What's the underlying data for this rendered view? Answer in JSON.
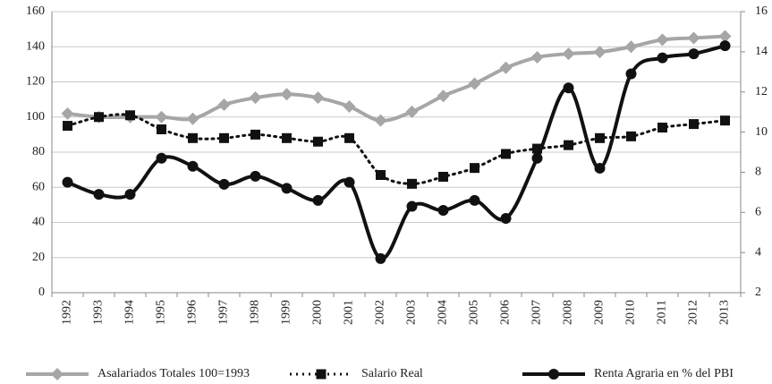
{
  "chart_data": {
    "type": "line",
    "categories": [
      "1992",
      "1993",
      "1994",
      "1995",
      "1996",
      "1997",
      "1998",
      "1999",
      "2000",
      "2001",
      "2002",
      "2003",
      "2004",
      "2005",
      "2006",
      "2007",
      "2008",
      "2009",
      "2010",
      "2011",
      "2012",
      "2013"
    ],
    "series": [
      {
        "name": "Asalariados Totales 100=1993",
        "color": "#a6a6a6",
        "marker": "diamond",
        "dash": "solid",
        "axis": "y",
        "values": [
          102,
          100,
          100,
          100,
          99,
          107,
          111,
          113,
          111,
          106,
          98,
          103,
          112,
          119,
          128,
          134,
          136,
          137,
          140,
          144,
          145,
          146
        ]
      },
      {
        "name": "Salario Real",
        "color": "#111111",
        "marker": "square",
        "dash": "dotted",
        "axis": "y",
        "values": [
          95,
          100,
          101,
          93,
          88,
          88,
          90,
          88,
          86,
          88,
          67,
          62,
          66,
          71,
          79,
          82,
          84,
          88,
          89,
          94,
          96,
          98
        ]
      },
      {
        "name": "Renta Agraria en % del PBI",
        "color": "#111111",
        "marker": "circle",
        "dash": "solid",
        "axis": "y2",
        "values": [
          7.5,
          6.9,
          6.9,
          8.7,
          8.3,
          7.4,
          7.8,
          7.2,
          6.6,
          7.5,
          3.7,
          6.3,
          6.1,
          6.6,
          5.7,
          8.7,
          12.2,
          8.2,
          12.9,
          13.7,
          13.9,
          14.3
        ]
      }
    ],
    "ylim": [
      0,
      160
    ],
    "yticks": [
      0,
      20,
      40,
      60,
      80,
      100,
      120,
      140,
      160
    ],
    "y2lim": [
      2,
      16
    ],
    "y2ticks": [
      2,
      4,
      6,
      8,
      10,
      12,
      14,
      16
    ],
    "grid": true,
    "legend": "bottom"
  }
}
